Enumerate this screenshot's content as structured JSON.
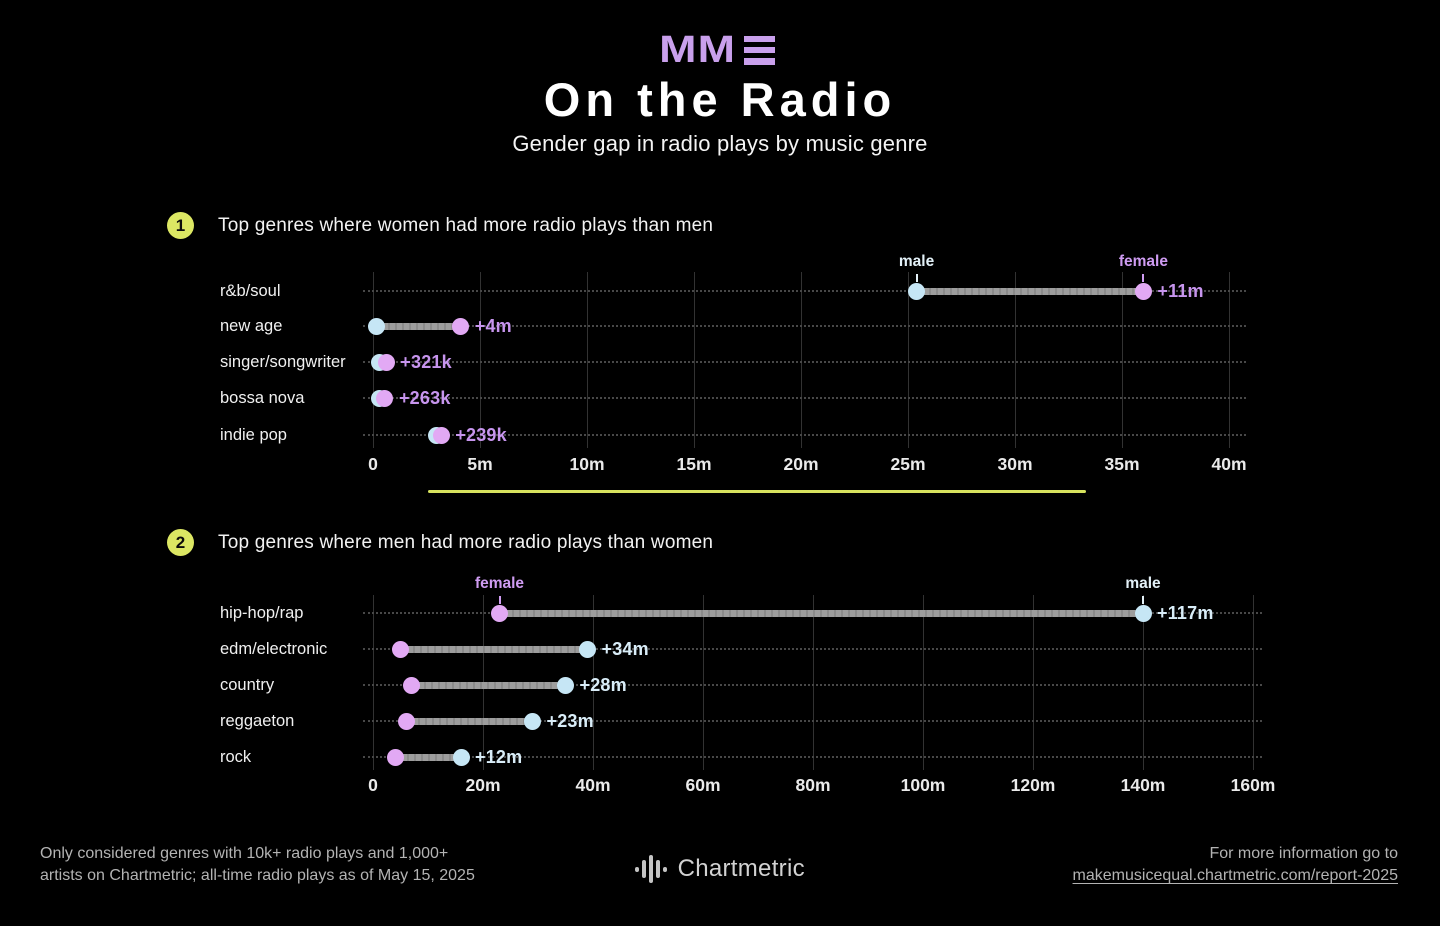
{
  "header": {
    "logo_text": "MM",
    "title": "On the Radio",
    "subtitle": "Gender gap in radio plays by music genre"
  },
  "sections": [
    {
      "badge": "1",
      "heading": "Top genres where women had more radio plays than men"
    },
    {
      "badge": "2",
      "heading": "Top genres where men had more radio plays than women"
    }
  ],
  "colors": {
    "background": "#000000",
    "male_dot": "#c6e6f5",
    "female_dot": "#e2a9f4",
    "female_gap_label": "#c795ee",
    "male_gap_label": "#d9edf8",
    "accent_yellow": "#dce763",
    "connector_gray": "#9a9a9a",
    "logo_purple": "#c9a0ec"
  },
  "chart_data": [
    {
      "type": "scatter",
      "variant": "dumbbell",
      "title": "Top genres where women had more radio plays than men",
      "unit": "all-time radio plays (millions)",
      "categories": [
        "r&b/soul",
        "new age",
        "singer/songwriter",
        "bossa nova",
        "indie pop"
      ],
      "series": [
        {
          "name": "male",
          "color": "#c6e6f5",
          "values_m": [
            25.4,
            0.15,
            0.3,
            0.3,
            2.95
          ]
        },
        {
          "name": "female",
          "color": "#e2a9f4",
          "values_m": [
            36.0,
            4.1,
            0.62,
            0.56,
            3.19
          ]
        }
      ],
      "gap_labels": [
        "+11m",
        "+4m",
        "+321k",
        "+263k",
        "+239k"
      ],
      "gap_label_color": "#c795ee",
      "x_ticks": [
        "0",
        "5m",
        "10m",
        "15m",
        "20m",
        "25m",
        "30m",
        "35m",
        "40m"
      ],
      "xlim_m": [
        0,
        40
      ],
      "grid": true,
      "annotations": [
        {
          "row": 0,
          "series": "male",
          "text": "male",
          "color": "#e3f1f8"
        },
        {
          "row": 0,
          "series": "female",
          "text": "female",
          "color": "#cf9cf2"
        }
      ]
    },
    {
      "type": "scatter",
      "variant": "dumbbell",
      "title": "Top genres where men had more radio plays than women",
      "unit": "all-time radio plays (millions)",
      "categories": [
        "hip-hop/rap",
        "edm/electronic",
        "country",
        "reggaeton",
        "rock"
      ],
      "series": [
        {
          "name": "female",
          "color": "#e2a9f4",
          "values_m": [
            23,
            5,
            7,
            6,
            4
          ]
        },
        {
          "name": "male",
          "color": "#c6e6f5",
          "values_m": [
            140,
            39,
            35,
            29,
            16
          ]
        }
      ],
      "gap_labels": [
        "+117m",
        "+34m",
        "+28m",
        "+23m",
        "+12m"
      ],
      "gap_label_color": "#d9edf8",
      "x_ticks": [
        "0",
        "20m",
        "40m",
        "60m",
        "80m",
        "100m",
        "120m",
        "140m",
        "160m"
      ],
      "xlim_m": [
        0,
        160
      ],
      "grid": true,
      "annotations": [
        {
          "row": 0,
          "series": "female",
          "text": "female",
          "color": "#cf9cf2"
        },
        {
          "row": 0,
          "series": "male",
          "text": "male",
          "color": "#e3f1f8"
        }
      ]
    }
  ],
  "footer": {
    "note_lines": [
      "Only considered genres with 10k+ radio plays and 1,000+",
      "artists on Chartmetric; all-time radio plays as of May 15, 2025"
    ],
    "brand": "Chartmetric",
    "info_text": "For more information go to",
    "info_link": "makemusicequal.chartmetric.com/report-2025"
  }
}
